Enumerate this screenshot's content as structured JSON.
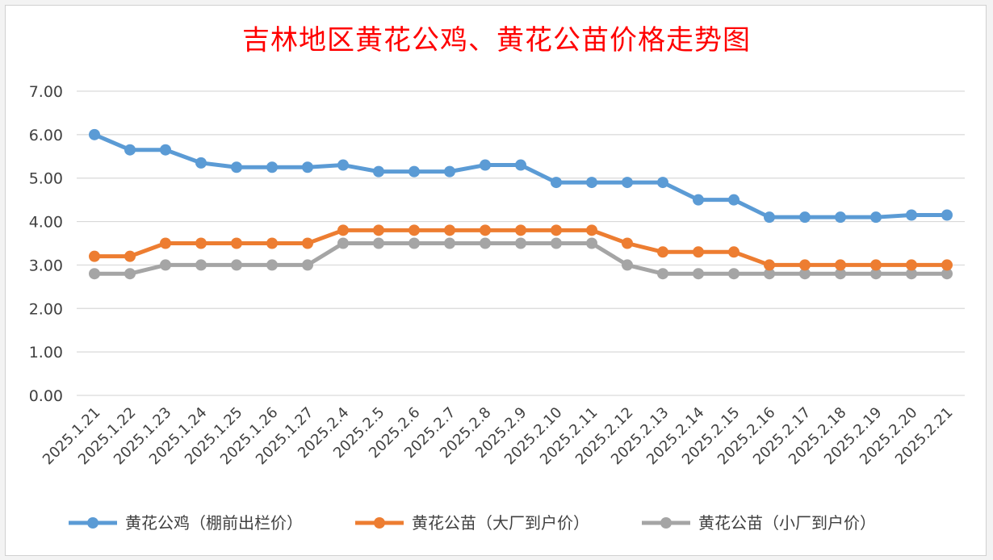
{
  "chart_data": {
    "type": "line",
    "title": "吉林地区黄花公鸡、黄花公苗价格走势图",
    "xlabel": "",
    "ylabel": "",
    "ylim": [
      0,
      7
    ],
    "y_ticks": [
      "0.00",
      "1.00",
      "2.00",
      "3.00",
      "4.00",
      "5.00",
      "6.00",
      "7.00"
    ],
    "grid": true,
    "legend_position": "bottom",
    "categories": [
      "2025.1.21",
      "2025.1.22",
      "2025.1.23",
      "2025.1.24",
      "2025.1.25",
      "2025.1.26",
      "2025.1.27",
      "2025.2.4",
      "2025.2.5",
      "2025.2.6",
      "2025.2.7",
      "2025.2.8",
      "2025.2.9",
      "2025.2.10",
      "2025.2.11",
      "2025.2.12",
      "2025.2.13",
      "2025.2.14",
      "2025.2.15",
      "2025.2.16",
      "2025.2.17",
      "2025.2.18",
      "2025.2.19",
      "2025.2.20",
      "2025.2.21"
    ],
    "series": [
      {
        "name": "黄花公鸡（棚前出栏价）",
        "color": "#5b9bd5",
        "values": [
          6.0,
          5.65,
          5.65,
          5.35,
          5.25,
          5.25,
          5.25,
          5.3,
          5.15,
          5.15,
          5.15,
          5.3,
          5.3,
          4.9,
          4.9,
          4.9,
          4.9,
          4.5,
          4.5,
          4.1,
          4.1,
          4.1,
          4.1,
          4.15,
          4.15
        ]
      },
      {
        "name": "黄花公苗（大厂到户价）",
        "color": "#ed7d31",
        "values": [
          3.2,
          3.2,
          3.5,
          3.5,
          3.5,
          3.5,
          3.5,
          3.8,
          3.8,
          3.8,
          3.8,
          3.8,
          3.8,
          3.8,
          3.8,
          3.5,
          3.3,
          3.3,
          3.3,
          3.0,
          3.0,
          3.0,
          3.0,
          3.0,
          3.0
        ]
      },
      {
        "name": "黄花公苗（小厂到户价）",
        "color": "#a5a5a5",
        "values": [
          2.8,
          2.8,
          3.0,
          3.0,
          3.0,
          3.0,
          3.0,
          3.5,
          3.5,
          3.5,
          3.5,
          3.5,
          3.5,
          3.5,
          3.5,
          3.0,
          2.8,
          2.8,
          2.8,
          2.8,
          2.8,
          2.8,
          2.8,
          2.8,
          2.8
        ]
      }
    ]
  }
}
